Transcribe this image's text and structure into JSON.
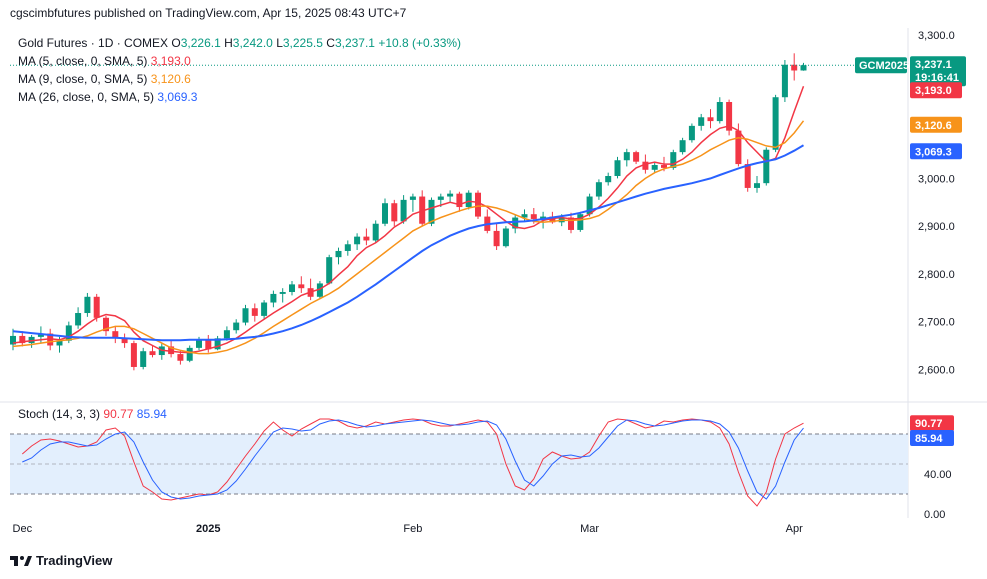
{
  "header": {
    "publisher_line": "cgscimbfutures published on TradingView.com, Apr 15, 2025 08:43 UTC+7"
  },
  "legend": {
    "symbol": "Gold Futures · 1D · COMEX",
    "open_label": "O",
    "open": "3,226.1",
    "high_label": "H",
    "high": "3,242.0",
    "low_label": "L",
    "low": "3,225.5",
    "close_label": "C",
    "close": "3,237.1",
    "change": "+10.8 (+0.33%)",
    "ma5_label": "MA (5, close, 0, SMA, 5)",
    "ma5_value": "3,193.0",
    "ma9_label": "MA (9, close, 0, SMA, 5)",
    "ma9_value": "3,120.6",
    "ma26_label": "MA (26, close, 0, SMA, 5)",
    "ma26_value": "3,069.3"
  },
  "stoch_legend": {
    "label": "Stoch (14, 3, 3)",
    "k_value": "90.77",
    "d_value": "85.94"
  },
  "price_tags": {
    "symbol_tag": "GCM2025",
    "last_price": "3,237.1",
    "countdown": "19:16:41",
    "ma5": "3,193.0",
    "ma9": "3,120.6",
    "ma26": "3,069.3",
    "stoch_k": "90.77",
    "stoch_d": "85.94"
  },
  "footer": {
    "brand": "TradingView"
  },
  "colors": {
    "up": "#089981",
    "down": "#f23645",
    "ma5": "#f23645",
    "ma9": "#f7931a",
    "ma26": "#2962ff",
    "stoch_k": "#f23645",
    "stoch_d": "#2962ff",
    "stoch_band": "#e3effd",
    "grid_dotted": "#b2b5be"
  },
  "chart_data": [
    {
      "type": "candlestick",
      "title": "Gold Futures · 1D · COMEX",
      "y_ticks": [
        "3,300.0",
        "3,000.0",
        "2,900.0",
        "2,800.0",
        "2,700.0",
        "2,600.0"
      ],
      "y_tick_values": [
        3300,
        3000,
        2900,
        2800,
        2700,
        2600
      ],
      "ylim": [
        2540,
        3315
      ],
      "x_labels": [
        "Dec",
        "2025",
        "Feb",
        "Mar",
        "Apr"
      ],
      "x_label_index": [
        1,
        21,
        43,
        62,
        84
      ],
      "candles": [
        [
          2652,
          2685,
          2640,
          2670
        ],
        [
          2670,
          2680,
          2648,
          2655
        ],
        [
          2655,
          2672,
          2645,
          2668
        ],
        [
          2668,
          2690,
          2655,
          2675
        ],
        [
          2675,
          2685,
          2640,
          2650
        ],
        [
          2650,
          2668,
          2635,
          2660
        ],
        [
          2660,
          2700,
          2655,
          2692
        ],
        [
          2692,
          2730,
          2685,
          2718
        ],
        [
          2718,
          2760,
          2710,
          2752
        ],
        [
          2752,
          2758,
          2700,
          2708
        ],
        [
          2708,
          2712,
          2670,
          2680
        ],
        [
          2680,
          2690,
          2655,
          2665
        ],
        [
          2665,
          2675,
          2645,
          2655
        ],
        [
          2655,
          2660,
          2598,
          2605
        ],
        [
          2605,
          2645,
          2600,
          2638
        ],
        [
          2638,
          2650,
          2625,
          2630
        ],
        [
          2630,
          2655,
          2620,
          2648
        ],
        [
          2648,
          2660,
          2625,
          2632
        ],
        [
          2632,
          2640,
          2610,
          2618
        ],
        [
          2618,
          2650,
          2615,
          2645
        ],
        [
          2645,
          2668,
          2640,
          2662
        ],
        [
          2662,
          2672,
          2635,
          2642
        ],
        [
          2642,
          2670,
          2640,
          2665
        ],
        [
          2665,
          2690,
          2660,
          2682
        ],
        [
          2682,
          2705,
          2675,
          2698
        ],
        [
          2698,
          2735,
          2692,
          2728
        ],
        [
          2728,
          2738,
          2700,
          2712
        ],
        [
          2712,
          2745,
          2705,
          2740
        ],
        [
          2740,
          2765,
          2730,
          2758
        ],
        [
          2758,
          2770,
          2740,
          2762
        ],
        [
          2762,
          2785,
          2755,
          2778
        ],
        [
          2778,
          2795,
          2760,
          2770
        ],
        [
          2770,
          2790,
          2745,
          2752
        ],
        [
          2752,
          2785,
          2748,
          2780
        ],
        [
          2780,
          2840,
          2778,
          2835
        ],
        [
          2835,
          2855,
          2820,
          2848
        ],
        [
          2848,
          2870,
          2838,
          2862
        ],
        [
          2862,
          2885,
          2850,
          2878
        ],
        [
          2878,
          2895,
          2860,
          2870
        ],
        [
          2870,
          2912,
          2865,
          2905
        ],
        [
          2905,
          2958,
          2900,
          2948
        ],
        [
          2948,
          2955,
          2900,
          2910
        ],
        [
          2910,
          2965,
          2905,
          2955
        ],
        [
          2955,
          2968,
          2930,
          2962
        ],
        [
          2962,
          2975,
          2900,
          2905
        ],
        [
          2905,
          2960,
          2900,
          2955
        ],
        [
          2955,
          2968,
          2940,
          2962
        ],
        [
          2962,
          2975,
          2950,
          2968
        ],
        [
          2968,
          2972,
          2930,
          2940
        ],
        [
          2940,
          2975,
          2935,
          2970
        ],
        [
          2970,
          2975,
          2915,
          2920
        ],
        [
          2920,
          2935,
          2885,
          2890
        ],
        [
          2890,
          2905,
          2850,
          2858
        ],
        [
          2858,
          2900,
          2855,
          2895
        ],
        [
          2895,
          2925,
          2885,
          2918
        ],
        [
          2918,
          2935,
          2910,
          2925
        ],
        [
          2925,
          2938,
          2905,
          2915
        ],
        [
          2915,
          2930,
          2895,
          2920
        ],
        [
          2920,
          2930,
          2905,
          2908
        ],
        [
          2908,
          2925,
          2900,
          2918
        ],
        [
          2918,
          2928,
          2885,
          2892
        ],
        [
          2892,
          2930,
          2888,
          2925
        ],
        [
          2925,
          2968,
          2920,
          2962
        ],
        [
          2962,
          2998,
          2955,
          2992
        ],
        [
          2992,
          3012,
          2985,
          3005
        ],
        [
          3005,
          3045,
          3000,
          3038
        ],
        [
          3038,
          3062,
          3025,
          3055
        ],
        [
          3055,
          3058,
          3030,
          3035
        ],
        [
          3035,
          3050,
          3010,
          3018
        ],
        [
          3018,
          3035,
          3012,
          3028
        ],
        [
          3028,
          3045,
          3015,
          3022
        ],
        [
          3022,
          3060,
          3018,
          3055
        ],
        [
          3055,
          3085,
          3050,
          3080
        ],
        [
          3080,
          3115,
          3075,
          3110
        ],
        [
          3110,
          3135,
          3100,
          3128
        ],
        [
          3128,
          3145,
          3105,
          3120
        ],
        [
          3120,
          3170,
          3115,
          3160
        ],
        [
          3160,
          3165,
          3090,
          3100
        ],
        [
          3100,
          3115,
          3025,
          3030
        ],
        [
          3030,
          3040,
          2972,
          2980
        ],
        [
          2980,
          3005,
          2970,
          2990
        ],
        [
          2990,
          3065,
          2985,
          3060
        ],
        [
          3060,
          3175,
          3055,
          3170
        ],
        [
          3170,
          3248,
          3160,
          3238
        ],
        [
          3238,
          3262,
          3205,
          3226
        ],
        [
          3226,
          3242,
          3225.5,
          3237.1
        ]
      ],
      "series": [
        {
          "name": "MA (5, close, 0, SMA, 5)",
          "values": [
            2655,
            2658,
            2660,
            2662,
            2664,
            2662,
            2668,
            2680,
            2695,
            2708,
            2715,
            2712,
            2702,
            2678,
            2660,
            2650,
            2640,
            2638,
            2636,
            2635,
            2638,
            2643,
            2648,
            2655,
            2665,
            2678,
            2692,
            2705,
            2718,
            2730,
            2742,
            2755,
            2762,
            2768,
            2780,
            2798,
            2815,
            2838,
            2855,
            2865,
            2880,
            2898,
            2910,
            2925,
            2932,
            2938,
            2944,
            2950,
            2945,
            2952,
            2950,
            2940,
            2925,
            2910,
            2898,
            2895,
            2900,
            2912,
            2916,
            2918,
            2915,
            2916,
            2925,
            2940,
            2958,
            2980,
            3005,
            3022,
            3030,
            3034,
            3030,
            3030,
            3040,
            3055,
            3075,
            3092,
            3105,
            3110,
            3100,
            3075,
            3055,
            3035,
            3042,
            3085,
            3140,
            3193
          ]
        },
        {
          "name": "MA (9, close, 0, SMA, 5)",
          "values": [
            2648,
            2650,
            2652,
            2655,
            2658,
            2660,
            2662,
            2665,
            2670,
            2678,
            2685,
            2690,
            2690,
            2685,
            2675,
            2665,
            2655,
            2645,
            2640,
            2636,
            2633,
            2633,
            2636,
            2640,
            2647,
            2655,
            2665,
            2677,
            2690,
            2702,
            2714,
            2726,
            2738,
            2748,
            2758,
            2770,
            2785,
            2800,
            2815,
            2830,
            2845,
            2860,
            2875,
            2890,
            2900,
            2910,
            2918,
            2925,
            2932,
            2938,
            2942,
            2942,
            2938,
            2932,
            2924,
            2916,
            2910,
            2908,
            2910,
            2912,
            2912,
            2913,
            2916,
            2922,
            2935,
            2950,
            2966,
            2985,
            3000,
            3012,
            3020,
            3025,
            3030,
            3038,
            3048,
            3060,
            3070,
            3080,
            3085,
            3082,
            3075,
            3068,
            3065,
            3075,
            3095,
            3120.6
          ]
        },
        {
          "name": "MA (26, close, 0, SMA, 5)",
          "values": [
            2680,
            2678,
            2676,
            2674,
            2672,
            2670,
            2668,
            2667,
            2666,
            2666,
            2666,
            2666,
            2665,
            2664,
            2663,
            2662,
            2661,
            2661,
            2661,
            2662,
            2662,
            2662,
            2662,
            2663,
            2664,
            2666,
            2668,
            2671,
            2675,
            2680,
            2686,
            2693,
            2701,
            2710,
            2720,
            2730,
            2740,
            2752,
            2765,
            2778,
            2792,
            2806,
            2820,
            2834,
            2848,
            2860,
            2870,
            2880,
            2888,
            2895,
            2900,
            2904,
            2906,
            2908,
            2909,
            2910,
            2912,
            2915,
            2918,
            2921,
            2924,
            2928,
            2933,
            2938,
            2944,
            2950,
            2956,
            2962,
            2968,
            2973,
            2978,
            2982,
            2986,
            2990,
            2995,
            3000,
            3007,
            3014,
            3021,
            3027,
            3032,
            3036,
            3040,
            3048,
            3058,
            3069.3
          ]
        }
      ],
      "last_price": 3237.1
    },
    {
      "type": "line",
      "title": "Stoch (14, 3, 3)",
      "y_ticks": [
        "40.00",
        "0.00"
      ],
      "y_tick_values": [
        40,
        0
      ],
      "ylim": [
        0,
        100
      ],
      "bands": [
        20,
        80
      ],
      "middle": 50,
      "series": [
        {
          "name": "%K",
          "values": [
            60,
            68,
            74,
            75,
            73,
            70,
            67,
            68,
            72,
            84,
            86,
            78,
            52,
            28,
            22,
            15,
            14,
            16,
            18,
            20,
            19,
            22,
            32,
            45,
            58,
            70,
            83,
            92,
            84,
            78,
            85,
            90,
            95,
            95,
            93,
            88,
            86,
            88,
            92,
            90,
            92,
            94,
            95,
            94,
            90,
            88,
            88,
            90,
            92,
            94,
            92,
            80,
            50,
            28,
            24,
            35,
            55,
            62,
            58,
            55,
            56,
            62,
            78,
            92,
            95,
            94,
            90,
            86,
            88,
            93,
            92,
            94,
            95,
            94,
            92,
            86,
            70,
            42,
            18,
            8,
            22,
            55,
            80,
            86,
            90.77
          ]
        },
        {
          "name": "%D",
          "values": [
            52,
            56,
            64,
            70,
            72,
            72,
            70,
            68,
            69,
            75,
            80,
            82,
            72,
            52,
            34,
            22,
            17,
            15,
            16,
            18,
            19,
            20,
            24,
            33,
            45,
            58,
            70,
            82,
            86,
            85,
            83,
            84,
            90,
            93,
            94,
            92,
            89,
            87,
            88,
            90,
            91,
            92,
            93,
            94,
            93,
            91,
            89,
            89,
            90,
            92,
            93,
            89,
            75,
            53,
            34,
            28,
            38,
            50,
            58,
            59,
            57,
            58,
            66,
            77,
            88,
            94,
            93,
            90,
            88,
            89,
            91,
            93,
            94,
            94,
            93,
            90,
            82,
            66,
            43,
            22,
            15,
            28,
            52,
            74,
            85.94
          ]
        }
      ]
    }
  ]
}
